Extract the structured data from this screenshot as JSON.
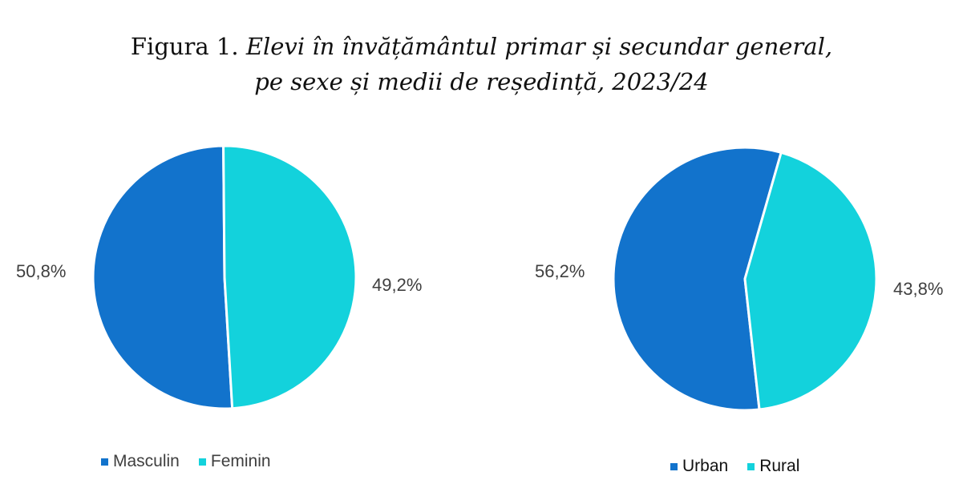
{
  "figure": {
    "title_prefix": "Figura 1.",
    "title_line1_italic": "Elevi în învățământul primar și secundar general,",
    "title_line2_italic": "pe sexe și medii de reședință, 2023/24"
  },
  "colors": {
    "dark_blue": "#1273cc",
    "cyan": "#13d2dc",
    "separator": "#ffffff"
  },
  "chart_data": [
    {
      "type": "pie",
      "title": "",
      "slices": [
        {
          "label": "Masculin",
          "value": 50.8,
          "display": "50,8%",
          "color": "#1273cc"
        },
        {
          "label": "Feminin",
          "value": 49.2,
          "display": "49,2%",
          "color": "#13d2dc"
        }
      ],
      "legend": {
        "position": "bottom",
        "items": [
          "Masculin",
          "Feminin"
        ]
      }
    },
    {
      "type": "pie",
      "title": "",
      "slices": [
        {
          "label": "Urban",
          "value": 56.2,
          "display": "56,2%",
          "color": "#1273cc"
        },
        {
          "label": "Rural",
          "value": 43.8,
          "display": "43,8%",
          "color": "#13d2dc"
        }
      ],
      "legend": {
        "position": "bottom",
        "items": [
          "Urban",
          "Rural"
        ]
      }
    }
  ]
}
